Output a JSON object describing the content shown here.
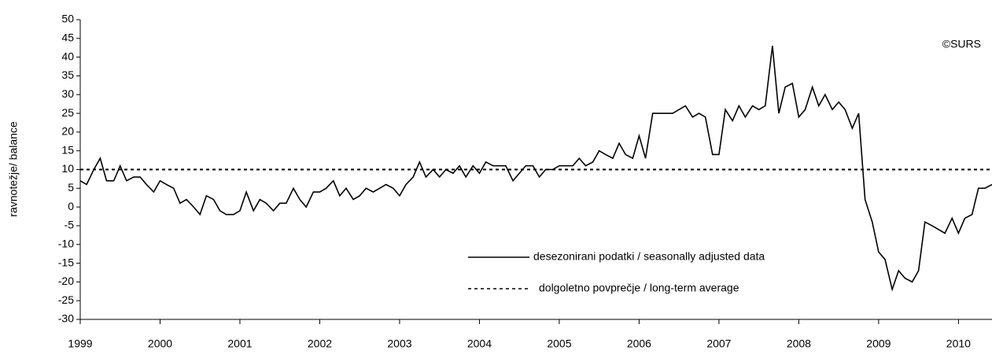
{
  "chart_data": {
    "type": "line",
    "y_label": "ravnotežje/ balance",
    "annotation": "©SURS",
    "x": [
      1999.0,
      1999.08,
      1999.17,
      1999.25,
      1999.33,
      1999.42,
      1999.5,
      1999.58,
      1999.67,
      1999.75,
      1999.83,
      1999.92,
      2000.0,
      2000.08,
      2000.17,
      2000.25,
      2000.33,
      2000.42,
      2000.5,
      2000.58,
      2000.67,
      2000.75,
      2000.83,
      2000.92,
      2001.0,
      2001.08,
      2001.17,
      2001.25,
      2001.33,
      2001.42,
      2001.5,
      2001.58,
      2001.67,
      2001.75,
      2001.83,
      2001.92,
      2002.0,
      2002.08,
      2002.17,
      2002.25,
      2002.33,
      2002.42,
      2002.5,
      2002.58,
      2002.67,
      2002.75,
      2002.83,
      2002.92,
      2003.0,
      2003.08,
      2003.17,
      2003.25,
      2003.33,
      2003.42,
      2003.5,
      2003.58,
      2003.67,
      2003.75,
      2003.83,
      2003.92,
      2004.0,
      2004.08,
      2004.17,
      2004.25,
      2004.33,
      2004.42,
      2004.5,
      2004.58,
      2004.67,
      2004.75,
      2004.83,
      2004.92,
      2005.0,
      2005.08,
      2005.17,
      2005.25,
      2005.33,
      2005.42,
      2005.5,
      2005.58,
      2005.67,
      2005.75,
      2005.83,
      2005.92,
      2006.0,
      2006.08,
      2006.17,
      2006.25,
      2006.33,
      2006.42,
      2006.5,
      2006.58,
      2006.67,
      2006.75,
      2006.83,
      2006.92,
      2007.0,
      2007.08,
      2007.17,
      2007.25,
      2007.33,
      2007.42,
      2007.5,
      2007.58,
      2007.67,
      2007.75,
      2007.83,
      2007.92,
      2008.0,
      2008.08,
      2008.17,
      2008.25,
      2008.33,
      2008.42,
      2008.5,
      2008.58,
      2008.67,
      2008.75,
      2008.83,
      2008.92,
      2009.0,
      2009.08,
      2009.17,
      2009.25,
      2009.33,
      2009.42,
      2009.5,
      2009.58,
      2009.67,
      2009.75,
      2009.83,
      2009.92,
      2010.0,
      2010.08,
      2010.17,
      2010.25,
      2010.33,
      2010.42
    ],
    "series": [
      {
        "name": "desezonirani podatki / seasonally adjusted data",
        "color": "#000000",
        "values": [
          7,
          6,
          10,
          13,
          7,
          7,
          11,
          7,
          8,
          8,
          6,
          4,
          7,
          6,
          5,
          1,
          2,
          0,
          -2,
          3,
          2,
          -1,
          -2,
          -2,
          -1,
          4,
          -1,
          2,
          1,
          -1,
          1,
          1,
          5,
          2,
          0,
          4,
          4,
          5,
          7,
          3,
          5,
          2,
          3,
          5,
          4,
          5,
          6,
          5,
          3,
          6,
          8,
          12,
          8,
          10,
          8,
          10,
          9,
          11,
          8,
          11,
          9,
          12,
          11,
          11,
          11,
          7,
          9,
          11,
          11,
          8,
          10,
          10,
          11,
          11,
          11,
          13,
          11,
          12,
          15,
          14,
          13,
          17,
          14,
          13,
          19,
          13,
          25,
          25,
          25,
          25,
          26,
          27,
          24,
          25,
          24,
          14,
          14,
          26,
          23,
          27,
          24,
          27,
          26,
          27,
          43,
          25,
          32,
          33,
          24,
          26,
          32,
          27,
          30,
          26,
          28,
          26,
          21,
          25,
          2,
          -4,
          -12,
          -14,
          -22,
          -17,
          -19,
          -20,
          -17,
          -4,
          -5,
          -6,
          -7,
          -3,
          -7,
          -3,
          -2,
          5,
          5,
          6
        ]
      }
    ],
    "reference_line": {
      "name": "dolgoletno povprečje / long-term average",
      "value": 10,
      "color": "#000000",
      "style": "dashed"
    },
    "xlim": [
      1999,
      2010.42
    ],
    "xticks": [
      1999,
      2000,
      2001,
      2002,
      2003,
      2004,
      2005,
      2006,
      2007,
      2008,
      2009,
      2010
    ],
    "ylim": [
      -30,
      50
    ],
    "yticks": [
      -30,
      -25,
      -20,
      -15,
      -10,
      -5,
      0,
      5,
      10,
      15,
      20,
      25,
      30,
      35,
      40,
      45,
      50
    ],
    "grid": false
  }
}
